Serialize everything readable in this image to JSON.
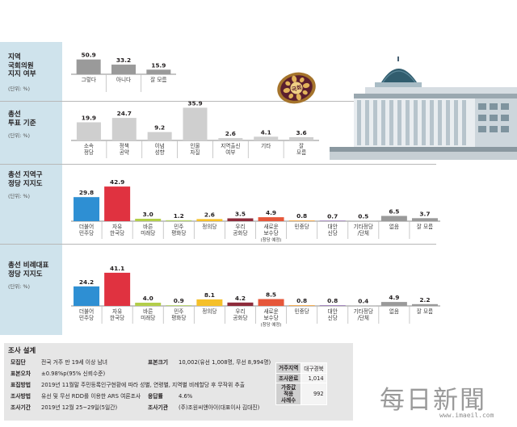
{
  "sections": [
    {
      "title": "지역\n국회의원\n지지 여부",
      "unit": "(단위: %)"
    },
    {
      "title": "총선\n투표 기준",
      "unit": "(단위: %)"
    },
    {
      "title": "총선 지역구\n정당 지지도",
      "unit": "(단위: %)"
    },
    {
      "title": "총선 비례대표\n정당 지지도",
      "unit": "(단위: %)"
    }
  ],
  "badge_text": "국회",
  "chart_data": [
    {
      "type": "bar",
      "title": "지역 국회의원 지지 여부",
      "unit": "(단위: %)",
      "categories": [
        "그렇다",
        "아니다",
        "잘 모름"
      ],
      "values": [
        50.9,
        33.2,
        15.9
      ],
      "colors": [
        "#9a9a9a",
        "#9a9a9a",
        "#9a9a9a"
      ]
    },
    {
      "type": "bar",
      "title": "총선 투표 기준",
      "unit": "(단위: %)",
      "categories": [
        "소속\n정당",
        "정책\n공약",
        "이념\n성향",
        "인물\n자질",
        "지역출신\n여부",
        "기타",
        "잘\n모름"
      ],
      "values": [
        19.9,
        24.7,
        9.2,
        35.9,
        2.6,
        4.1,
        3.6
      ],
      "colors": [
        "#cfcfcf",
        "#cfcfcf",
        "#cfcfcf",
        "#cfcfcf",
        "#cfcfcf",
        "#cfcfcf",
        "#cfcfcf"
      ]
    },
    {
      "type": "bar",
      "title": "총선 지역구 정당 지지도",
      "unit": "(단위: %)",
      "categories": [
        "더불어\n민주당",
        "자유\n한국당",
        "바른\n미래당",
        "민주\n평화당",
        "정의당",
        "우리\n공화당",
        "새로운\n보수당\n(창당 예정)",
        "민중당",
        "대안\n신당",
        "기타정당\n/단체",
        "없음",
        "잘 모름"
      ],
      "values": [
        29.8,
        42.9,
        3.0,
        1.2,
        2.6,
        3.5,
        4.9,
        0.8,
        0.7,
        0.5,
        6.5,
        3.7
      ],
      "colors": [
        "#2e8fd3",
        "#e03240",
        "#b3ce4a",
        "#b5d36b",
        "#f5c02a",
        "#8e2b3a",
        "#e6573a",
        "#f09a2c",
        "#8f6aae",
        "#9a9a9a",
        "#9a9a9a",
        "#9a9a9a"
      ]
    },
    {
      "type": "bar",
      "title": "총선 비례대표 정당 지지도",
      "unit": "(단위: %)",
      "categories": [
        "더불어\n민주당",
        "자유\n한국당",
        "바른\n미래당",
        "민주\n평화당",
        "정의당",
        "우리\n공화당",
        "새로운\n보수당\n(창당 예정)",
        "민중당",
        "대안\n신당",
        "기타정당\n/단체",
        "없음",
        "잘 모름"
      ],
      "values": [
        24.2,
        41.1,
        4.0,
        0.9,
        8.1,
        4.2,
        8.5,
        0.8,
        0.8,
        0.4,
        4.9,
        2.2
      ],
      "colors": [
        "#2e8fd3",
        "#e03240",
        "#b3ce4a",
        "#b5d36b",
        "#f5c02a",
        "#8e2b3a",
        "#e6573a",
        "#f09a2c",
        "#8f6aae",
        "#9a9a9a",
        "#9a9a9a",
        "#9a9a9a"
      ]
    }
  ],
  "survey": {
    "title": "조사 설계",
    "rows": [
      {
        "k": "모집단",
        "v": "전국 거주 만 19세 이상 남녀"
      },
      {
        "k": "표본오차",
        "v": "±0.98%p(95% 신뢰수준)"
      },
      {
        "k": "표집방법",
        "v": "2019년 11월말 주민등록인구현황에 따라 성별, 연령별, 지역별 비례할당 후 무작위 추출"
      },
      {
        "k": "조사방법",
        "v": "유선 및 무선 RDD를 이용한 ARS 여론조사"
      },
      {
        "k": "조사기간",
        "v": "2019년 12월 25~29일(5일간)"
      }
    ],
    "sample": {
      "k": "표본크기",
      "v": "10,002(유선 1,008명, 무선 8,994명)"
    },
    "response": {
      "k": "응답률",
      "v": "4.6%"
    },
    "agency": {
      "k": "조사기관",
      "v": "(주)조원씨앤아이(대표이사 김대진)"
    },
    "table": [
      [
        "거주지역",
        "대구경북"
      ],
      [
        "조사완료",
        "1,014"
      ],
      [
        "가중값\n적용\n사례수",
        "992"
      ]
    ]
  },
  "logo": {
    "name": "每日新聞",
    "url": "www.imaeil.com"
  }
}
